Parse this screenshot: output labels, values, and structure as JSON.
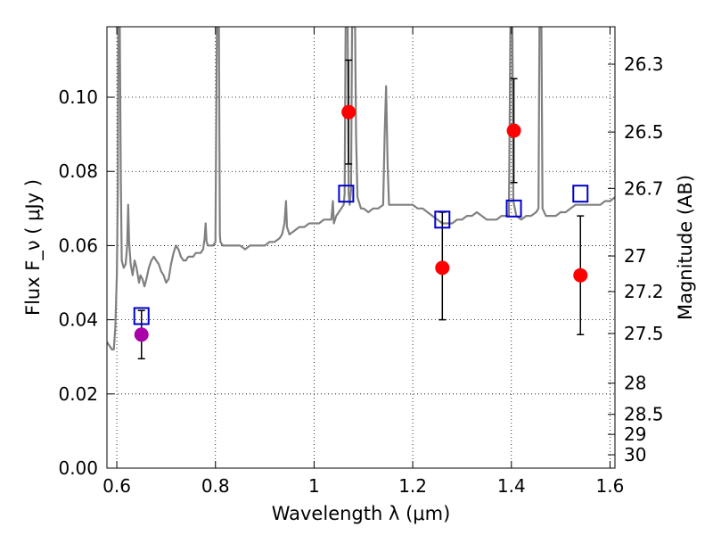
{
  "chart_data": {
    "type": "scatter",
    "xlabel": "Wavelength  λ (μm)",
    "ylabel": "Flux  F_ν  ( μJy )",
    "ylabel_right": "Magnitude (AB)",
    "xlim": [
      0.58,
      1.61
    ],
    "ylim": [
      0.0,
      0.119
    ],
    "grid": true,
    "x_ticks": [
      0.6,
      0.8,
      1.0,
      1.2,
      1.4,
      1.6
    ],
    "x_tick_labels": [
      "0.6",
      "0.8",
      "1",
      "1.2",
      "1.4",
      "1.6"
    ],
    "y_ticks": [
      0.0,
      0.02,
      0.04,
      0.06,
      0.08,
      0.1
    ],
    "y_tick_labels": [
      "0.00",
      "0.02",
      "0.04",
      "0.06",
      "0.08",
      "0.10"
    ],
    "right_ticks": [
      {
        "label": "26.3",
        "flux": 0.1089
      },
      {
        "label": "26.5",
        "flux": 0.0906
      },
      {
        "label": "26.7",
        "flux": 0.0754
      },
      {
        "label": "27",
        "flux": 0.0572
      },
      {
        "label": "27.2",
        "flux": 0.0476
      },
      {
        "label": "27.5",
        "flux": 0.0363
      },
      {
        "label": "28",
        "flux": 0.0229
      },
      {
        "label": "28.5",
        "flux": 0.0145
      },
      {
        "label": "29",
        "flux": 0.0091
      },
      {
        "label": "30",
        "flux": 0.0036
      }
    ],
    "series": [
      {
        "marker": "circle",
        "color": "#ff0000",
        "points": [
          {
            "x": 1.07,
            "y": 0.096,
            "yerr": [
              0.082,
              0.11
            ]
          },
          {
            "x": 1.26,
            "y": 0.054,
            "yerr": [
              0.04,
              0.069
            ]
          },
          {
            "x": 1.405,
            "y": 0.091,
            "yerr": [
              0.077,
              0.105
            ]
          },
          {
            "x": 1.54,
            "y": 0.052,
            "yerr": [
              0.036,
              0.068
            ]
          }
        ]
      },
      {
        "marker": "circle",
        "color": "#aa00aa",
        "points": [
          {
            "x": 0.65,
            "y": 0.036,
            "yerr": [
              0.0295,
              0.0425
            ]
          }
        ]
      },
      {
        "marker": "open-square",
        "color": "#0000cc",
        "points": [
          {
            "x": 0.65,
            "y": 0.041
          },
          {
            "x": 1.065,
            "y": 0.074
          },
          {
            "x": 1.26,
            "y": 0.067
          },
          {
            "x": 1.405,
            "y": 0.07
          },
          {
            "x": 1.54,
            "y": 0.074
          }
        ]
      },
      {
        "marker": "line",
        "color": "#808080",
        "points": [
          [
            0.58,
            0.034
          ],
          [
            0.585,
            0.033
          ],
          [
            0.59,
            0.032
          ],
          [
            0.594,
            0.032
          ],
          [
            0.597,
            0.038
          ],
          [
            0.6,
            0.052
          ],
          [
            0.602,
            0.075
          ],
          [
            0.603,
            0.119
          ],
          [
            0.606,
            0.119
          ],
          [
            0.608,
            0.08
          ],
          [
            0.61,
            0.056
          ],
          [
            0.614,
            0.054
          ],
          [
            0.618,
            0.055
          ],
          [
            0.621,
            0.06
          ],
          [
            0.623,
            0.071
          ],
          [
            0.625,
            0.061
          ],
          [
            0.628,
            0.055
          ],
          [
            0.632,
            0.052
          ],
          [
            0.636,
            0.056
          ],
          [
            0.64,
            0.054
          ],
          [
            0.645,
            0.05
          ],
          [
            0.648,
            0.052
          ],
          [
            0.652,
            0.051
          ],
          [
            0.656,
            0.049
          ],
          [
            0.66,
            0.051
          ],
          [
            0.665,
            0.054
          ],
          [
            0.67,
            0.056
          ],
          [
            0.675,
            0.057
          ],
          [
            0.68,
            0.056
          ],
          [
            0.685,
            0.055
          ],
          [
            0.69,
            0.053
          ],
          [
            0.695,
            0.052
          ],
          [
            0.7,
            0.05
          ],
          [
            0.705,
            0.051
          ],
          [
            0.71,
            0.055
          ],
          [
            0.715,
            0.058
          ],
          [
            0.72,
            0.06
          ],
          [
            0.725,
            0.059
          ],
          [
            0.73,
            0.057
          ],
          [
            0.735,
            0.056
          ],
          [
            0.74,
            0.056
          ],
          [
            0.745,
            0.057
          ],
          [
            0.75,
            0.057
          ],
          [
            0.755,
            0.057
          ],
          [
            0.76,
            0.058
          ],
          [
            0.765,
            0.058
          ],
          [
            0.77,
            0.058
          ],
          [
            0.775,
            0.059
          ],
          [
            0.778,
            0.062
          ],
          [
            0.78,
            0.066
          ],
          [
            0.782,
            0.061
          ],
          [
            0.785,
            0.06
          ],
          [
            0.79,
            0.06
          ],
          [
            0.795,
            0.06
          ],
          [
            0.8,
            0.061
          ],
          [
            0.803,
            0.119
          ],
          [
            0.807,
            0.119
          ],
          [
            0.809,
            0.063
          ],
          [
            0.81,
            0.061
          ],
          [
            0.815,
            0.06
          ],
          [
            0.82,
            0.06
          ],
          [
            0.83,
            0.06
          ],
          [
            0.84,
            0.06
          ],
          [
            0.85,
            0.06
          ],
          [
            0.86,
            0.059
          ],
          [
            0.87,
            0.06
          ],
          [
            0.88,
            0.06
          ],
          [
            0.89,
            0.06
          ],
          [
            0.9,
            0.06
          ],
          [
            0.91,
            0.061
          ],
          [
            0.92,
            0.061
          ],
          [
            0.93,
            0.062
          ],
          [
            0.935,
            0.063
          ],
          [
            0.94,
            0.066
          ],
          [
            0.943,
            0.072
          ],
          [
            0.945,
            0.065
          ],
          [
            0.95,
            0.063
          ],
          [
            0.96,
            0.064
          ],
          [
            0.97,
            0.065
          ],
          [
            0.98,
            0.065
          ],
          [
            0.99,
            0.066
          ],
          [
            1.0,
            0.066
          ],
          [
            1.01,
            0.066
          ],
          [
            1.02,
            0.067
          ],
          [
            1.03,
            0.067
          ],
          [
            1.035,
            0.067
          ],
          [
            1.038,
            0.072
          ],
          [
            1.04,
            0.066
          ],
          [
            1.045,
            0.068
          ],
          [
            1.05,
            0.069
          ],
          [
            1.055,
            0.07
          ],
          [
            1.06,
            0.071
          ],
          [
            1.062,
            0.074
          ],
          [
            1.064,
            0.119
          ],
          [
            1.068,
            0.119
          ],
          [
            1.07,
            0.074
          ],
          [
            1.072,
            0.071
          ],
          [
            1.075,
            0.075
          ],
          [
            1.077,
            0.119
          ],
          [
            1.081,
            0.119
          ],
          [
            1.083,
            0.119
          ],
          [
            1.085,
            0.09
          ],
          [
            1.088,
            0.073
          ],
          [
            1.095,
            0.07
          ],
          [
            1.1,
            0.07
          ],
          [
            1.11,
            0.069
          ],
          [
            1.12,
            0.07
          ],
          [
            1.13,
            0.07
          ],
          [
            1.14,
            0.071
          ],
          [
            1.143,
            0.09
          ],
          [
            1.146,
            0.103
          ],
          [
            1.149,
            0.082
          ],
          [
            1.152,
            0.071
          ],
          [
            1.16,
            0.071
          ],
          [
            1.17,
            0.071
          ],
          [
            1.18,
            0.071
          ],
          [
            1.19,
            0.071
          ],
          [
            1.2,
            0.071
          ],
          [
            1.21,
            0.07
          ],
          [
            1.22,
            0.07
          ],
          [
            1.23,
            0.069
          ],
          [
            1.24,
            0.068
          ],
          [
            1.25,
            0.067
          ],
          [
            1.26,
            0.066
          ],
          [
            1.27,
            0.066
          ],
          [
            1.28,
            0.066
          ],
          [
            1.29,
            0.067
          ],
          [
            1.3,
            0.067
          ],
          [
            1.31,
            0.068
          ],
          [
            1.32,
            0.068
          ],
          [
            1.33,
            0.069
          ],
          [
            1.34,
            0.068
          ],
          [
            1.35,
            0.067
          ],
          [
            1.36,
            0.067
          ],
          [
            1.37,
            0.067
          ],
          [
            1.38,
            0.068
          ],
          [
            1.39,
            0.068
          ],
          [
            1.395,
            0.068
          ],
          [
            1.398,
            0.119
          ],
          [
            1.402,
            0.119
          ],
          [
            1.404,
            0.072
          ],
          [
            1.41,
            0.068
          ],
          [
            1.42,
            0.067
          ],
          [
            1.43,
            0.068
          ],
          [
            1.44,
            0.068
          ],
          [
            1.45,
            0.069
          ],
          [
            1.455,
            0.07
          ],
          [
            1.457,
            0.119
          ],
          [
            1.461,
            0.119
          ],
          [
            1.463,
            0.07
          ],
          [
            1.47,
            0.068
          ],
          [
            1.48,
            0.068
          ],
          [
            1.49,
            0.068
          ],
          [
            1.5,
            0.069
          ],
          [
            1.51,
            0.069
          ],
          [
            1.52,
            0.07
          ],
          [
            1.53,
            0.071
          ],
          [
            1.54,
            0.071
          ],
          [
            1.55,
            0.071
          ],
          [
            1.56,
            0.071
          ],
          [
            1.57,
            0.071
          ],
          [
            1.58,
            0.071
          ],
          [
            1.59,
            0.072
          ],
          [
            1.6,
            0.072
          ],
          [
            1.61,
            0.073
          ]
        ]
      }
    ]
  }
}
